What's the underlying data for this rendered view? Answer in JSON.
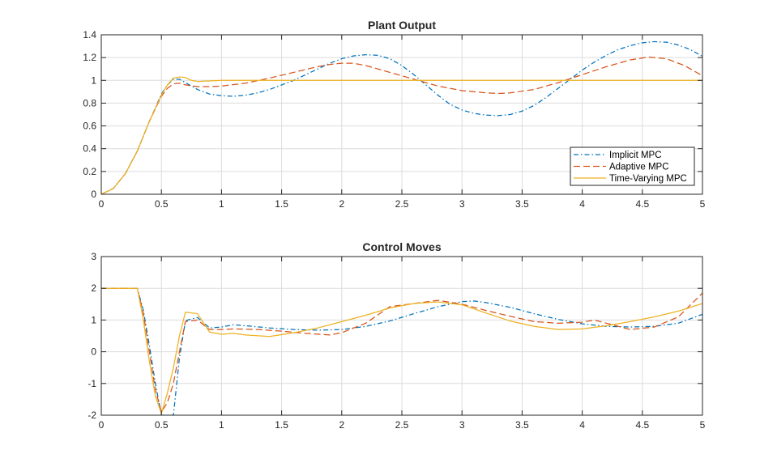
{
  "figure": {
    "background": "#ffffff"
  },
  "chart_data": [
    {
      "type": "line",
      "title": "Plant Output",
      "xlabel": "",
      "ylabel": "",
      "xlim": [
        0,
        5
      ],
      "ylim": [
        0,
        1.4
      ],
      "xticks": [
        0,
        0.5,
        1,
        1.5,
        2,
        2.5,
        3,
        3.5,
        4,
        4.5,
        5
      ],
      "xtick_labels": [
        "0",
        "0.5",
        "1",
        "1.5",
        "2",
        "2.5",
        "3",
        "3.5",
        "4",
        "4.5",
        "5"
      ],
      "yticks": [
        0,
        0.2,
        0.4,
        0.6,
        0.8,
        1,
        1.2,
        1.4
      ],
      "ytick_labels": [
        "0",
        "0.2",
        "0.4",
        "0.6",
        "0.8",
        "1",
        "1.2",
        "1.4"
      ],
      "grid": true,
      "legend": {
        "placement": "bottom-right",
        "entries": [
          "Implicit MPC",
          "Adaptive MPC",
          "Time-Varying MPC"
        ]
      },
      "series": [
        {
          "name": "Implicit MPC",
          "color": "#0072BD",
          "dash": "dash-dot",
          "x": [
            0,
            0.1,
            0.2,
            0.3,
            0.4,
            0.5,
            0.55,
            0.6,
            0.65,
            0.7,
            0.8,
            0.9,
            1.0,
            1.1,
            1.2,
            1.3,
            1.4,
            1.5,
            1.6,
            1.7,
            1.8,
            1.9,
            2.0,
            2.1,
            2.2,
            2.3,
            2.4,
            2.5,
            2.6,
            2.7,
            2.8,
            2.9,
            3.0,
            3.1,
            3.2,
            3.3,
            3.4,
            3.5,
            3.6,
            3.7,
            3.8,
            3.9,
            4.0,
            4.1,
            4.2,
            4.3,
            4.4,
            4.5,
            4.6,
            4.7,
            4.8,
            4.9,
            5.0
          ],
          "y": [
            0,
            0.05,
            0.18,
            0.38,
            0.64,
            0.88,
            0.96,
            1.01,
            1.01,
            0.98,
            0.92,
            0.88,
            0.865,
            0.86,
            0.87,
            0.89,
            0.92,
            0.96,
            1.0,
            1.05,
            1.1,
            1.15,
            1.19,
            1.215,
            1.225,
            1.22,
            1.19,
            1.13,
            1.05,
            0.96,
            0.87,
            0.79,
            0.74,
            0.71,
            0.695,
            0.69,
            0.7,
            0.73,
            0.78,
            0.85,
            0.93,
            1.01,
            1.09,
            1.16,
            1.22,
            1.27,
            1.305,
            1.33,
            1.34,
            1.335,
            1.31,
            1.27,
            1.21
          ]
        },
        {
          "name": "Adaptive MPC",
          "color": "#D95319",
          "dash": "dashed",
          "x": [
            0,
            0.1,
            0.2,
            0.3,
            0.4,
            0.5,
            0.55,
            0.6,
            0.65,
            0.7,
            0.8,
            0.9,
            1.0,
            1.2,
            1.4,
            1.6,
            1.8,
            1.9,
            2.0,
            2.1,
            2.2,
            2.4,
            2.6,
            2.8,
            3.0,
            3.2,
            3.3,
            3.4,
            3.6,
            3.8,
            4.0,
            4.2,
            4.4,
            4.55,
            4.7,
            4.85,
            5.0
          ],
          "y": [
            0,
            0.05,
            0.18,
            0.38,
            0.64,
            0.86,
            0.93,
            0.97,
            0.975,
            0.96,
            0.945,
            0.945,
            0.95,
            0.975,
            1.02,
            1.07,
            1.12,
            1.14,
            1.15,
            1.15,
            1.13,
            1.07,
            1.01,
            0.95,
            0.91,
            0.89,
            0.885,
            0.89,
            0.92,
            0.98,
            1.05,
            1.12,
            1.18,
            1.205,
            1.19,
            1.13,
            1.04
          ]
        },
        {
          "name": "Time-Varying MPC",
          "color": "#EDB120",
          "dash": "solid",
          "x": [
            0,
            0.1,
            0.2,
            0.3,
            0.4,
            0.5,
            0.55,
            0.6,
            0.65,
            0.7,
            0.75,
            0.8,
            0.9,
            1.0,
            1.2,
            1.5,
            2.0,
            3.0,
            4.0,
            5.0
          ],
          "y": [
            0,
            0.05,
            0.18,
            0.38,
            0.64,
            0.87,
            0.96,
            1.02,
            1.03,
            1.025,
            1.0,
            0.99,
            0.995,
            1.0,
            1.0,
            1.0,
            1.0,
            1.0,
            1.0,
            1.0
          ]
        }
      ]
    },
    {
      "type": "line",
      "title": "Control Moves",
      "xlabel": "",
      "ylabel": "",
      "xlim": [
        0,
        5
      ],
      "ylim": [
        -2,
        3
      ],
      "xticks": [
        0,
        0.5,
        1,
        1.5,
        2,
        2.5,
        3,
        3.5,
        4,
        4.5,
        5
      ],
      "xtick_labels": [
        "0",
        "0.5",
        "1",
        "1.5",
        "2",
        "2.5",
        "3",
        "3.5",
        "4",
        "4.5",
        "5"
      ],
      "yticks": [
        -2,
        -1,
        0,
        1,
        2,
        3
      ],
      "ytick_labels": [
        "-2",
        "-1",
        "0",
        "1",
        "2",
        "3"
      ],
      "grid": true,
      "series": [
        {
          "name": "Implicit MPC",
          "color": "#0072BD",
          "dash": "dash-dot",
          "x": [
            0,
            0.3,
            0.35,
            0.4,
            0.45,
            0.5,
            0.55,
            0.6,
            0.65,
            0.7,
            0.8,
            0.9,
            1.0,
            1.1,
            1.2,
            1.4,
            1.6,
            1.8,
            2.0,
            2.2,
            2.4,
            2.6,
            2.8,
            3.0,
            3.1,
            3.2,
            3.4,
            3.6,
            3.8,
            4.0,
            4.2,
            4.4,
            4.6,
            4.8,
            5.0
          ],
          "y": [
            2,
            2,
            1.3,
            0.2,
            -1.0,
            -2.0,
            -2.0,
            -2.0,
            -0.2,
            0.98,
            1.08,
            0.75,
            0.78,
            0.85,
            0.82,
            0.75,
            0.7,
            0.68,
            0.7,
            0.8,
            0.97,
            1.2,
            1.42,
            1.58,
            1.6,
            1.55,
            1.4,
            1.2,
            1.02,
            0.88,
            0.8,
            0.78,
            0.8,
            0.9,
            1.18
          ]
        },
        {
          "name": "Adaptive MPC",
          "color": "#D95319",
          "dash": "dashed",
          "x": [
            0,
            0.3,
            0.35,
            0.4,
            0.45,
            0.5,
            0.55,
            0.6,
            0.65,
            0.7,
            0.8,
            0.9,
            1.0,
            1.1,
            1.3,
            1.5,
            1.7,
            1.9,
            2.0,
            2.2,
            2.4,
            2.6,
            2.8,
            3.0,
            3.2,
            3.4,
            3.6,
            3.8,
            4.0,
            4.1,
            4.2,
            4.4,
            4.6,
            4.8,
            5.0
          ],
          "y": [
            2,
            2,
            1.2,
            0.0,
            -1.2,
            -1.9,
            -1.6,
            -1.0,
            0.0,
            0.95,
            1.0,
            0.7,
            0.7,
            0.72,
            0.7,
            0.65,
            0.58,
            0.53,
            0.6,
            0.9,
            1.42,
            1.52,
            1.62,
            1.5,
            1.3,
            1.12,
            0.95,
            0.9,
            0.93,
            1.0,
            0.9,
            0.7,
            0.78,
            1.1,
            1.85
          ]
        },
        {
          "name": "Time-Varying MPC",
          "color": "#EDB120",
          "dash": "solid",
          "x": [
            0,
            0.3,
            0.35,
            0.4,
            0.45,
            0.5,
            0.55,
            0.6,
            0.65,
            0.7,
            0.8,
            0.9,
            1.0,
            1.1,
            1.2,
            1.4,
            1.6,
            1.8,
            2.0,
            2.2,
            2.4,
            2.6,
            2.8,
            3.0,
            3.2,
            3.4,
            3.6,
            3.8,
            4.0,
            4.2,
            4.4,
            4.6,
            4.8,
            5.0
          ],
          "y": [
            2,
            2,
            1.0,
            -0.3,
            -1.4,
            -1.95,
            -1.3,
            -0.5,
            0.5,
            1.25,
            1.2,
            0.62,
            0.55,
            0.58,
            0.53,
            0.48,
            0.6,
            0.75,
            0.95,
            1.15,
            1.38,
            1.52,
            1.57,
            1.48,
            1.22,
            0.97,
            0.8,
            0.7,
            0.72,
            0.82,
            0.95,
            1.1,
            1.28,
            1.52
          ]
        }
      ]
    }
  ]
}
